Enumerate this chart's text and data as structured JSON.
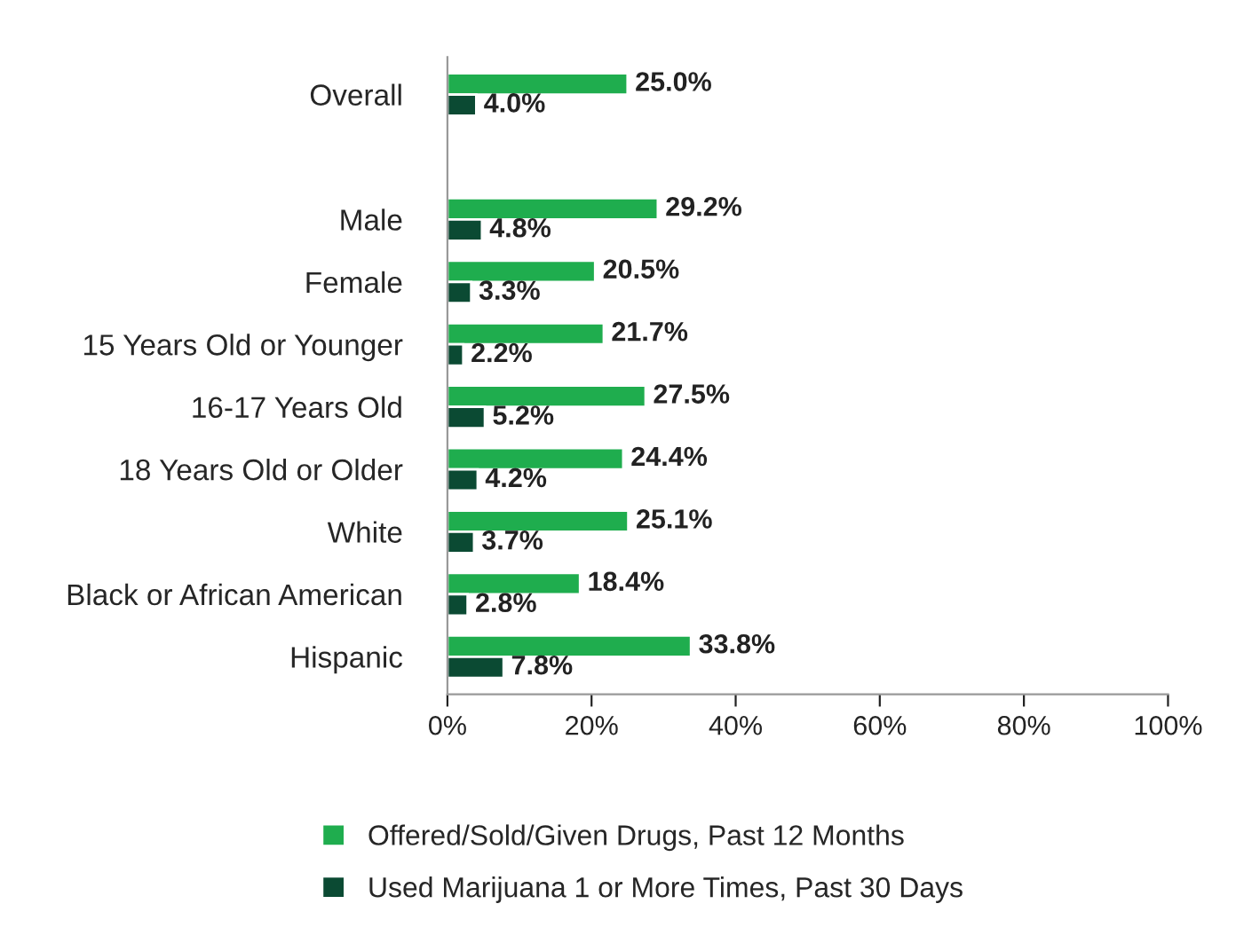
{
  "chart_data": {
    "type": "bar",
    "orientation": "horizontal",
    "categories": [
      "Overall",
      null,
      "Male",
      "Female",
      "15 Years Old or Younger",
      "16-17 Years Old",
      "18 Years Old or Older",
      "White",
      "Black or African American",
      "Hispanic"
    ],
    "series": [
      {
        "name": "Offered/Sold/Given Drugs, Past 12 Months",
        "color": "#1fad4e",
        "values": [
          25.0,
          null,
          29.2,
          20.5,
          21.7,
          27.5,
          24.4,
          25.1,
          18.4,
          33.8
        ],
        "value_labels": [
          "25.0%",
          null,
          "29.2%",
          "20.5%",
          "21.7%",
          "27.5%",
          "24.4%",
          "25.1%",
          "18.4%",
          "33.8%"
        ]
      },
      {
        "name": "Used Marijuana 1 or More Times, Past 30 Days",
        "color": "#0b4a33",
        "values": [
          4.0,
          null,
          4.8,
          3.3,
          2.2,
          5.2,
          4.2,
          3.7,
          2.8,
          7.8
        ],
        "value_labels": [
          "4.0%",
          null,
          "4.8%",
          "3.3%",
          "2.2%",
          "5.2%",
          "4.2%",
          "3.7%",
          "2.8%",
          "7.8%"
        ]
      }
    ],
    "xlim": [
      0,
      100
    ],
    "xticks": [
      {
        "value": 0,
        "label": "0%"
      },
      {
        "value": 20,
        "label": "20%"
      },
      {
        "value": 40,
        "label": "40%"
      },
      {
        "value": 60,
        "label": "60%"
      },
      {
        "value": 80,
        "label": "80%"
      },
      {
        "value": 100,
        "label": "100%"
      }
    ],
    "legend": "bottom",
    "grid": false
  }
}
